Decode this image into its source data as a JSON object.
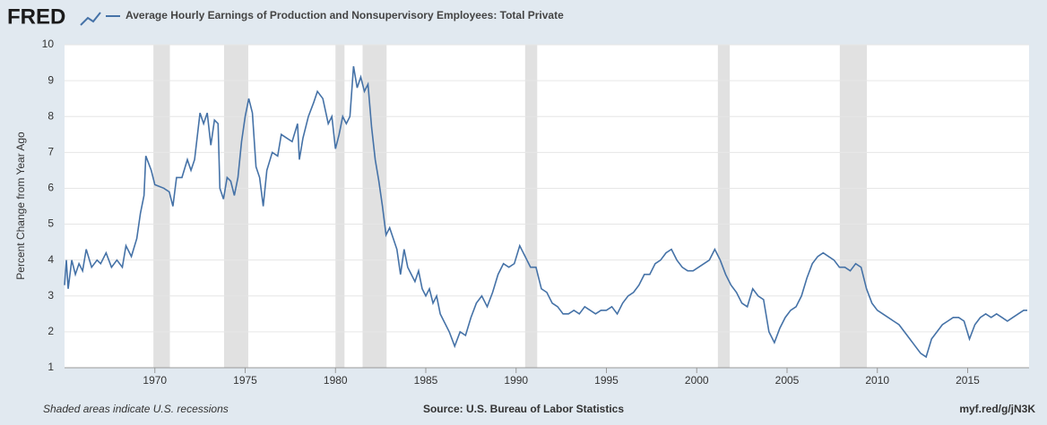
{
  "logo": "FRED",
  "chart_data": {
    "type": "line",
    "ylabel": "Percent Change from Year Ago",
    "note": "Shaded areas indicate U.S. recessions",
    "source": "Source: U.S. Bureau of Labor Statistics",
    "link": "myf.red/g/jN3K",
    "xlim": [
      1965.0,
      2018.4
    ],
    "ylim": [
      1,
      10
    ],
    "xticks": [
      1970,
      1975,
      1980,
      1985,
      1990,
      1995,
      2000,
      2005,
      2010,
      2015
    ],
    "yticks": [
      1,
      2,
      3,
      4,
      5,
      6,
      7,
      8,
      9,
      10
    ],
    "grid": true,
    "recessions": [
      [
        1969.92,
        1970.83
      ],
      [
        1973.83,
        1975.17
      ],
      [
        1980.0,
        1980.5
      ],
      [
        1981.5,
        1982.83
      ],
      [
        1990.5,
        1991.17
      ],
      [
        2001.17,
        2001.83
      ],
      [
        2007.92,
        2009.42
      ]
    ],
    "recession_color": "#e1e1e1",
    "x": [
      1965.0,
      1965.1,
      1965.2,
      1965.4,
      1965.6,
      1965.8,
      1966.0,
      1966.2,
      1966.5,
      1966.8,
      1967.0,
      1967.3,
      1967.6,
      1967.9,
      1968.2,
      1968.4,
      1968.7,
      1969.0,
      1969.2,
      1969.4,
      1969.5,
      1969.8,
      1970.0,
      1970.5,
      1970.8,
      1971.0,
      1971.2,
      1971.5,
      1971.8,
      1972.0,
      1972.2,
      1972.5,
      1972.7,
      1972.9,
      1973.1,
      1973.3,
      1973.5,
      1973.6,
      1973.8,
      1974.0,
      1974.2,
      1974.4,
      1974.6,
      1974.8,
      1975.0,
      1975.2,
      1975.4,
      1975.6,
      1975.8,
      1976.0,
      1976.2,
      1976.5,
      1976.8,
      1977.0,
      1977.3,
      1977.6,
      1977.9,
      1978.0,
      1978.2,
      1978.5,
      1978.8,
      1979.0,
      1979.3,
      1979.6,
      1979.8,
      1980.0,
      1980.2,
      1980.4,
      1980.6,
      1980.8,
      1981.0,
      1981.2,
      1981.4,
      1981.6,
      1981.8,
      1982.0,
      1982.2,
      1982.4,
      1982.6,
      1982.8,
      1983.0,
      1983.2,
      1983.4,
      1983.6,
      1983.8,
      1984.0,
      1984.2,
      1984.4,
      1984.6,
      1984.8,
      1985.0,
      1985.2,
      1985.4,
      1985.6,
      1985.8,
      1986.0,
      1986.3,
      1986.6,
      1986.9,
      1987.2,
      1987.5,
      1987.8,
      1988.1,
      1988.4,
      1988.7,
      1989.0,
      1989.3,
      1989.6,
      1989.9,
      1990.2,
      1990.5,
      1990.8,
      1991.1,
      1991.4,
      1991.7,
      1992.0,
      1992.3,
      1992.6,
      1992.9,
      1993.2,
      1993.5,
      1993.8,
      1994.1,
      1994.4,
      1994.7,
      1995.0,
      1995.3,
      1995.6,
      1995.9,
      1996.2,
      1996.5,
      1996.8,
      1997.1,
      1997.4,
      1997.7,
      1998.0,
      1998.3,
      1998.6,
      1998.9,
      1999.2,
      1999.5,
      1999.8,
      2000.1,
      2000.4,
      2000.7,
      2001.0,
      2001.3,
      2001.6,
      2001.9,
      2002.2,
      2002.5,
      2002.8,
      2003.1,
      2003.4,
      2003.7,
      2004.0,
      2004.3,
      2004.6,
      2004.9,
      2005.2,
      2005.5,
      2005.8,
      2006.1,
      2006.4,
      2006.7,
      2007.0,
      2007.3,
      2007.6,
      2007.9,
      2008.2,
      2008.5,
      2008.8,
      2009.1,
      2009.4,
      2009.7,
      2010.0,
      2010.3,
      2010.6,
      2010.9,
      2011.2,
      2011.5,
      2011.8,
      2012.1,
      2012.4,
      2012.7,
      2013.0,
      2013.3,
      2013.6,
      2013.9,
      2014.2,
      2014.5,
      2014.8,
      2015.1,
      2015.4,
      2015.7,
      2016.0,
      2016.3,
      2016.6,
      2016.9,
      2017.2,
      2017.5,
      2017.8,
      2018.1,
      2018.3
    ],
    "series": [
      {
        "name": "Average Hourly Earnings of Production and Nonsupervisory Employees: Total Private",
        "color": "#4572a7",
        "values": [
          3.3,
          4.0,
          3.2,
          4.0,
          3.6,
          3.9,
          3.7,
          4.3,
          3.8,
          4.0,
          3.9,
          4.2,
          3.8,
          4.0,
          3.8,
          4.4,
          4.1,
          4.6,
          5.3,
          5.8,
          6.9,
          6.5,
          6.1,
          6.0,
          5.9,
          5.5,
          6.3,
          6.3,
          6.8,
          6.5,
          6.8,
          8.1,
          7.8,
          8.1,
          7.2,
          7.9,
          7.8,
          6.0,
          5.7,
          6.3,
          6.2,
          5.8,
          6.3,
          7.3,
          8.0,
          8.5,
          8.1,
          6.6,
          6.3,
          5.5,
          6.5,
          7.0,
          6.9,
          7.5,
          7.4,
          7.3,
          7.8,
          6.8,
          7.4,
          8.0,
          8.4,
          8.7,
          8.5,
          7.8,
          8.0,
          7.1,
          7.5,
          8.0,
          7.8,
          8.0,
          9.4,
          8.8,
          9.1,
          8.7,
          8.9,
          7.7,
          6.8,
          6.2,
          5.5,
          4.7,
          4.9,
          4.6,
          4.3,
          3.6,
          4.3,
          3.8,
          3.6,
          3.4,
          3.7,
          3.2,
          3.0,
          3.2,
          2.8,
          3.0,
          2.5,
          2.3,
          2.0,
          1.6,
          2.0,
          1.9,
          2.4,
          2.8,
          3.0,
          2.7,
          3.1,
          3.6,
          3.9,
          3.8,
          3.9,
          4.4,
          4.1,
          3.8,
          3.8,
          3.2,
          3.1,
          2.8,
          2.7,
          2.5,
          2.5,
          2.6,
          2.5,
          2.7,
          2.6,
          2.5,
          2.6,
          2.6,
          2.7,
          2.5,
          2.8,
          3.0,
          3.1,
          3.3,
          3.6,
          3.6,
          3.9,
          4.0,
          4.2,
          4.3,
          4.0,
          3.8,
          3.7,
          3.7,
          3.8,
          3.9,
          4.0,
          4.3,
          4.0,
          3.6,
          3.3,
          3.1,
          2.8,
          2.7,
          3.2,
          3.0,
          2.9,
          2.0,
          1.7,
          2.1,
          2.4,
          2.6,
          2.7,
          3.0,
          3.5,
          3.9,
          4.1,
          4.2,
          4.1,
          4.0,
          3.8,
          3.8,
          3.7,
          3.9,
          3.8,
          3.2,
          2.8,
          2.6,
          2.5,
          2.4,
          2.3,
          2.2,
          2.0,
          1.8,
          1.6,
          1.4,
          1.3,
          1.8,
          2.0,
          2.2,
          2.3,
          2.4,
          2.4,
          2.3,
          1.8,
          2.2,
          2.4,
          2.5,
          2.4,
          2.5,
          2.4,
          2.3,
          2.4,
          2.5,
          2.6,
          2.6
        ]
      }
    ]
  }
}
